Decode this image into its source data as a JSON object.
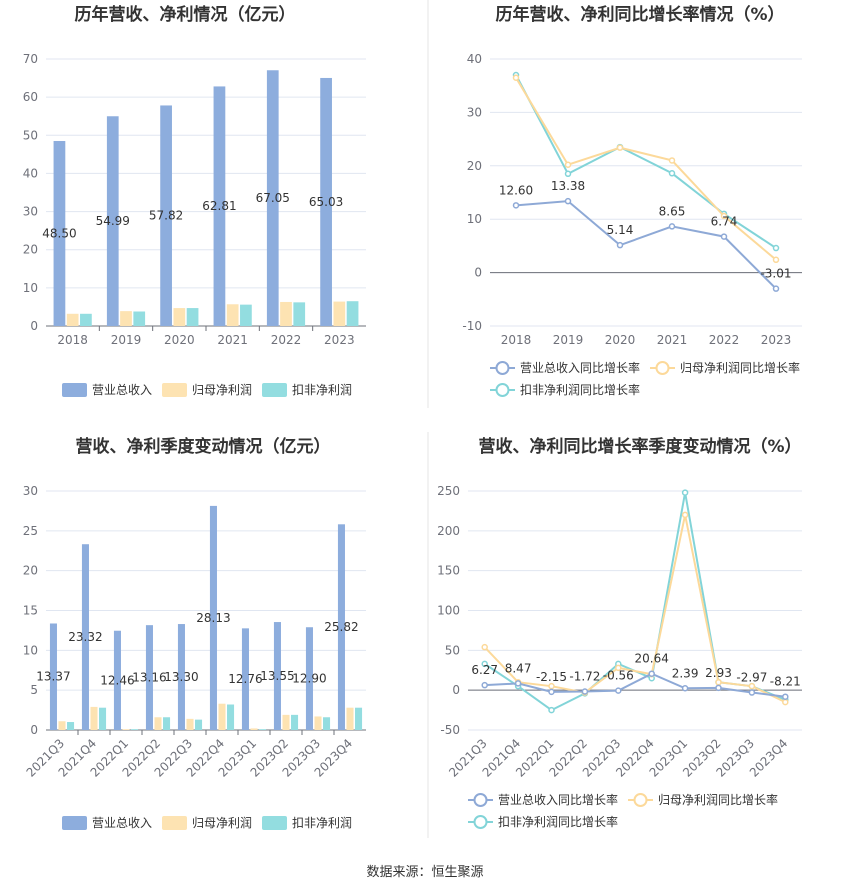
{
  "colors": {
    "revenue": "#8daddd",
    "netprofit": "#fde3b2",
    "deducted": "#93dde0",
    "revenue_line": "#8ea9d6",
    "netprofit_line": "#fcd99a",
    "deducted_line": "#82d4d8"
  },
  "source": "数据来源：恒生聚源",
  "chart_data": [
    {
      "type": "bar",
      "title": "历年营收、净利情况（亿元）",
      "categories": [
        "2018",
        "2019",
        "2020",
        "2021",
        "2022",
        "2023"
      ],
      "ylim": [
        0,
        70
      ],
      "yticks": [
        0,
        10,
        20,
        30,
        40,
        50,
        60,
        70
      ],
      "series": [
        {
          "name": "营业总收入",
          "values": [
            48.5,
            54.99,
            57.82,
            62.81,
            67.05,
            65.03
          ],
          "labels": [
            "48.50",
            "54.99",
            "57.82",
            "62.81",
            "67.05",
            "65.03"
          ]
        },
        {
          "name": "归母净利润",
          "values": [
            3.2,
            3.9,
            4.7,
            5.7,
            6.3,
            6.4
          ]
        },
        {
          "name": "扣非净利润",
          "values": [
            3.2,
            3.8,
            4.7,
            5.6,
            6.2,
            6.5
          ]
        }
      ],
      "legend": "bottom"
    },
    {
      "type": "line",
      "title": "历年营收、净利同比增长率情况（%）",
      "categories": [
        "2018",
        "2019",
        "2020",
        "2021",
        "2022",
        "2023"
      ],
      "ylim": [
        -10,
        40
      ],
      "yticks": [
        -10,
        0,
        10,
        20,
        30,
        40
      ],
      "series": [
        {
          "name": "营业总收入同比增长率",
          "values": [
            12.6,
            13.38,
            5.14,
            8.65,
            6.74,
            -3.01
          ],
          "labels": [
            "12.60",
            "13.38",
            "5.14",
            "8.65",
            "6.74",
            "-3.01"
          ]
        },
        {
          "name": "归母净利润同比增长率",
          "values": [
            36.5,
            20.2,
            23.4,
            21.0,
            10.6,
            2.4
          ]
        },
        {
          "name": "扣非净利润同比增长率",
          "values": [
            37.0,
            18.5,
            23.5,
            18.6,
            11.0,
            4.6
          ]
        }
      ],
      "legend": "bottom"
    },
    {
      "type": "bar",
      "title": "营收、净利季度变动情况（亿元）",
      "categories": [
        "2021Q3",
        "2021Q4",
        "2022Q1",
        "2022Q2",
        "2022Q3",
        "2022Q4",
        "2023Q1",
        "2023Q2",
        "2023Q3",
        "2023Q4"
      ],
      "ylim": [
        0,
        30
      ],
      "yticks": [
        0,
        5,
        10,
        15,
        20,
        25,
        30
      ],
      "series": [
        {
          "name": "营业总收入",
          "values": [
            13.37,
            23.32,
            12.46,
            13.16,
            13.3,
            28.13,
            12.76,
            13.55,
            12.9,
            25.82
          ],
          "labels": [
            "13.37",
            "23.32",
            "12.46",
            "13.16",
            "13.30",
            "28.13",
            "12.76",
            "13.55",
            "12.90",
            "25.82"
          ]
        },
        {
          "name": "归母净利润",
          "values": [
            1.1,
            2.9,
            0.1,
            1.6,
            1.4,
            3.3,
            0.2,
            1.9,
            1.7,
            2.8
          ]
        },
        {
          "name": "扣非净利润",
          "values": [
            1.0,
            2.8,
            0.1,
            1.6,
            1.3,
            3.2,
            0.1,
            1.9,
            1.6,
            2.8
          ]
        }
      ],
      "legend": "bottom"
    },
    {
      "type": "line",
      "title": "营收、净利同比增长率季度变动情况（%）",
      "categories": [
        "2021Q3",
        "2021Q4",
        "2022Q1",
        "2022Q2",
        "2022Q3",
        "2022Q4",
        "2023Q1",
        "2023Q2",
        "2023Q3",
        "2023Q4"
      ],
      "ylim": [
        -50,
        250
      ],
      "yticks": [
        -50,
        0,
        50,
        100,
        150,
        200,
        250
      ],
      "series": [
        {
          "name": "营业总收入同比增长率",
          "values": [
            6.27,
            8.47,
            -2.15,
            -1.72,
            -0.56,
            20.64,
            2.39,
            2.93,
            -2.97,
            -8.21
          ],
          "labels": [
            "6.27",
            "8.47",
            "-2.15",
            "-1.72",
            "-0.56",
            "20.64",
            "2.39",
            "2.93",
            "-2.97",
            "-8.21"
          ]
        },
        {
          "name": "归母净利润同比增长率",
          "values": [
            54,
            10,
            5,
            -3,
            28,
            20,
            220,
            10,
            5,
            -15
          ]
        },
        {
          "name": "扣非净利润同比增长率",
          "values": [
            33,
            5,
            -25,
            -4,
            33,
            15,
            248,
            10,
            5,
            -12
          ]
        }
      ],
      "legend": "bottom"
    }
  ]
}
